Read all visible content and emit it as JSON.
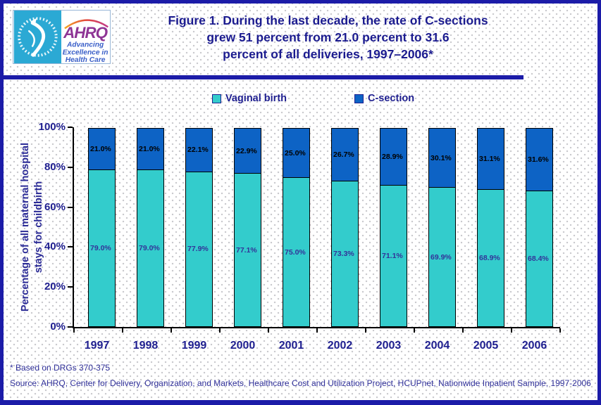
{
  "logo": {
    "org_name": "AHRQ",
    "tagline_lines": [
      "Advancing",
      "Excellence in",
      "Health Care"
    ]
  },
  "header": {
    "title_lines": [
      "Figure 1. During the last decade, the rate of C-sections",
      "grew 51 percent from 21.0 percent to 31.6",
      "percent of all deliveries, 1997–2006*"
    ]
  },
  "legend": {
    "items": [
      {
        "label": "Vaginal birth",
        "color": "#33CCCC"
      },
      {
        "label": "C-section",
        "color": "#0D63C5"
      }
    ]
  },
  "chart_data": {
    "type": "bar",
    "stacked": true,
    "title": "Figure 1. During the last decade, the rate of C-sections grew 51 percent from 21.0 percent to 31.6 percent of all deliveries, 1997–2006*",
    "categories": [
      "1997",
      "1998",
      "1999",
      "2000",
      "2001",
      "2002",
      "2003",
      "2004",
      "2005",
      "2006"
    ],
    "series": [
      {
        "name": "Vaginal birth",
        "color": "#33CCCC",
        "label_color": "#333399",
        "values": [
          79.0,
          79.0,
          77.9,
          77.1,
          75.0,
          73.3,
          71.1,
          69.9,
          68.9,
          68.4
        ]
      },
      {
        "name": "C-section",
        "color": "#0D63C5",
        "label_color": "#000000",
        "values": [
          21.0,
          21.0,
          22.1,
          22.9,
          25.0,
          26.7,
          28.9,
          30.1,
          31.1,
          31.6
        ]
      }
    ],
    "ylabel_lines": [
      "Percentage of all maternal hospital",
      "stays for childbirth"
    ],
    "y_tick_labels": [
      "100%",
      "80%",
      "60%",
      "40%",
      "20%",
      "0%"
    ],
    "ylim": [
      0,
      100
    ],
    "grid": false,
    "legend_position": "top",
    "value_label_format": "0.0%"
  },
  "footer": {
    "note": "* Based on DRGs 370-375",
    "source": "Source: AHRQ, Center for Delivery, Organization, and Markets, Healthcare Cost and Utilization Project, HCUPnet, Nationwide Inpatient Sample, 1997-2006"
  },
  "colors": {
    "navy_text": "#1E1E8F",
    "value_label_navy": "#333399",
    "border_navy": "#1C1CA8",
    "background_dots": "#C8C8CC",
    "hhs_cyan": "#2BA9D4",
    "ahrq_purple": "#8E3595",
    "tagline_blue": "#3A5FC8"
  }
}
